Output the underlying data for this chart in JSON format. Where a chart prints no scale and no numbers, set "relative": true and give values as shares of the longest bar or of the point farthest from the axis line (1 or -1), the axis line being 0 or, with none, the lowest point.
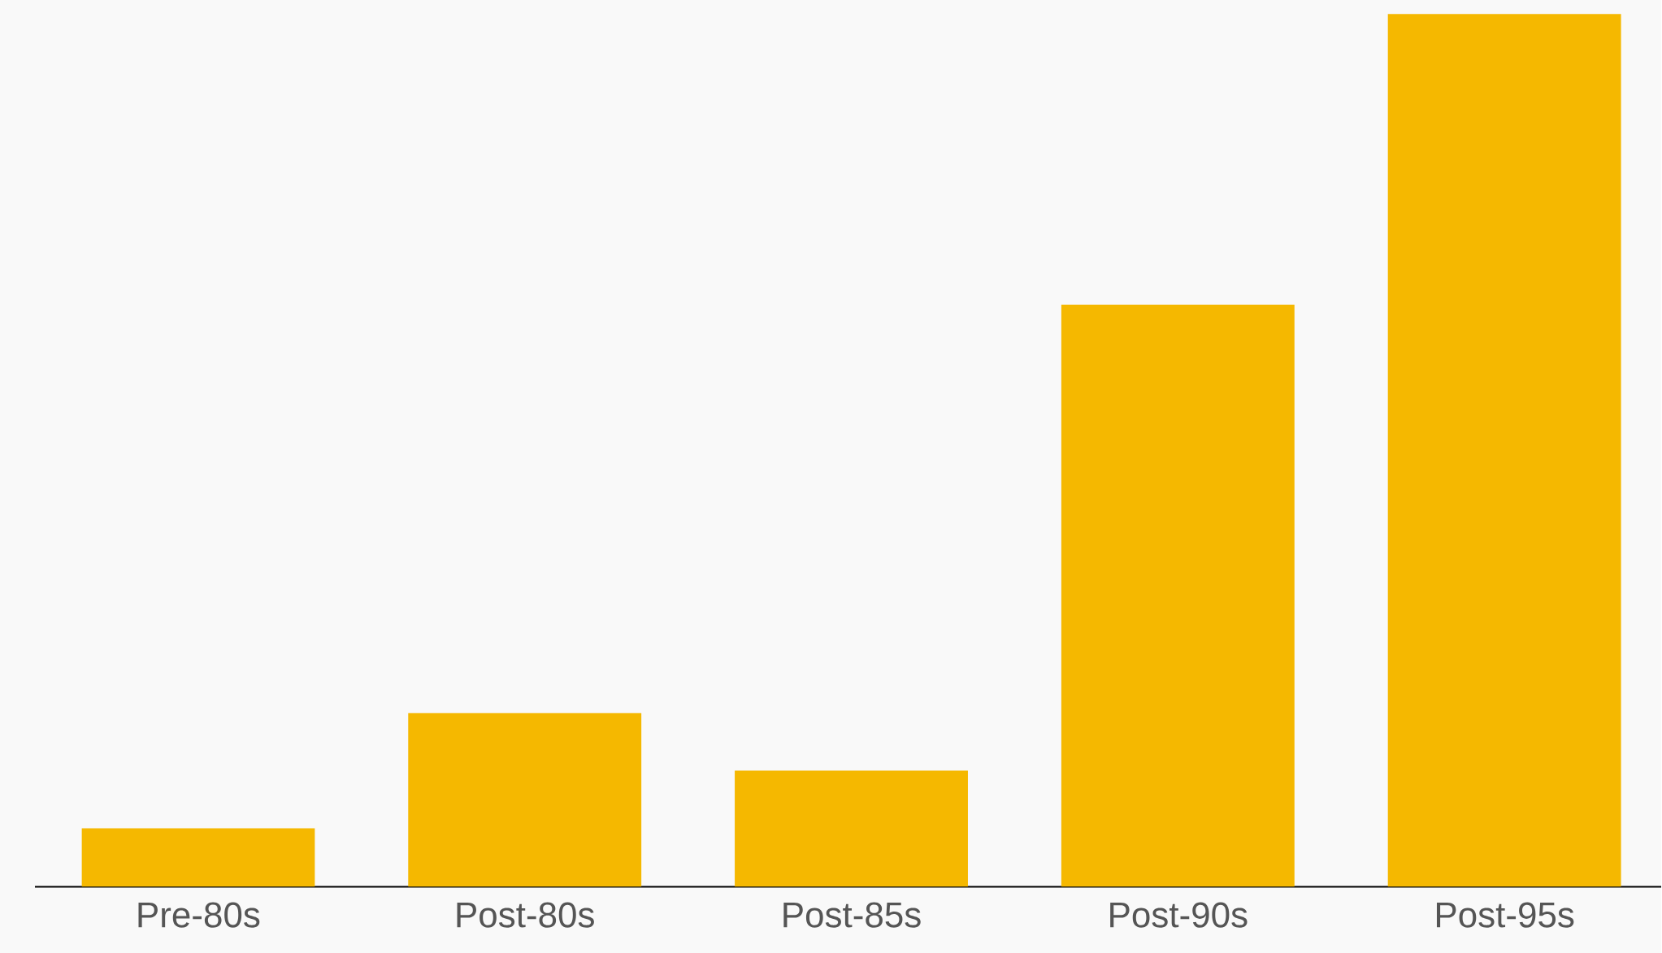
{
  "chart_data": {
    "type": "bar",
    "relative": true,
    "categories": [
      "Pre-80s",
      "Post-80s",
      "Post-85s",
      "Post-90s",
      "Post-95s"
    ],
    "values": [
      0.067,
      0.199,
      0.133,
      0.667,
      1
    ],
    "color": "#f5b800"
  }
}
